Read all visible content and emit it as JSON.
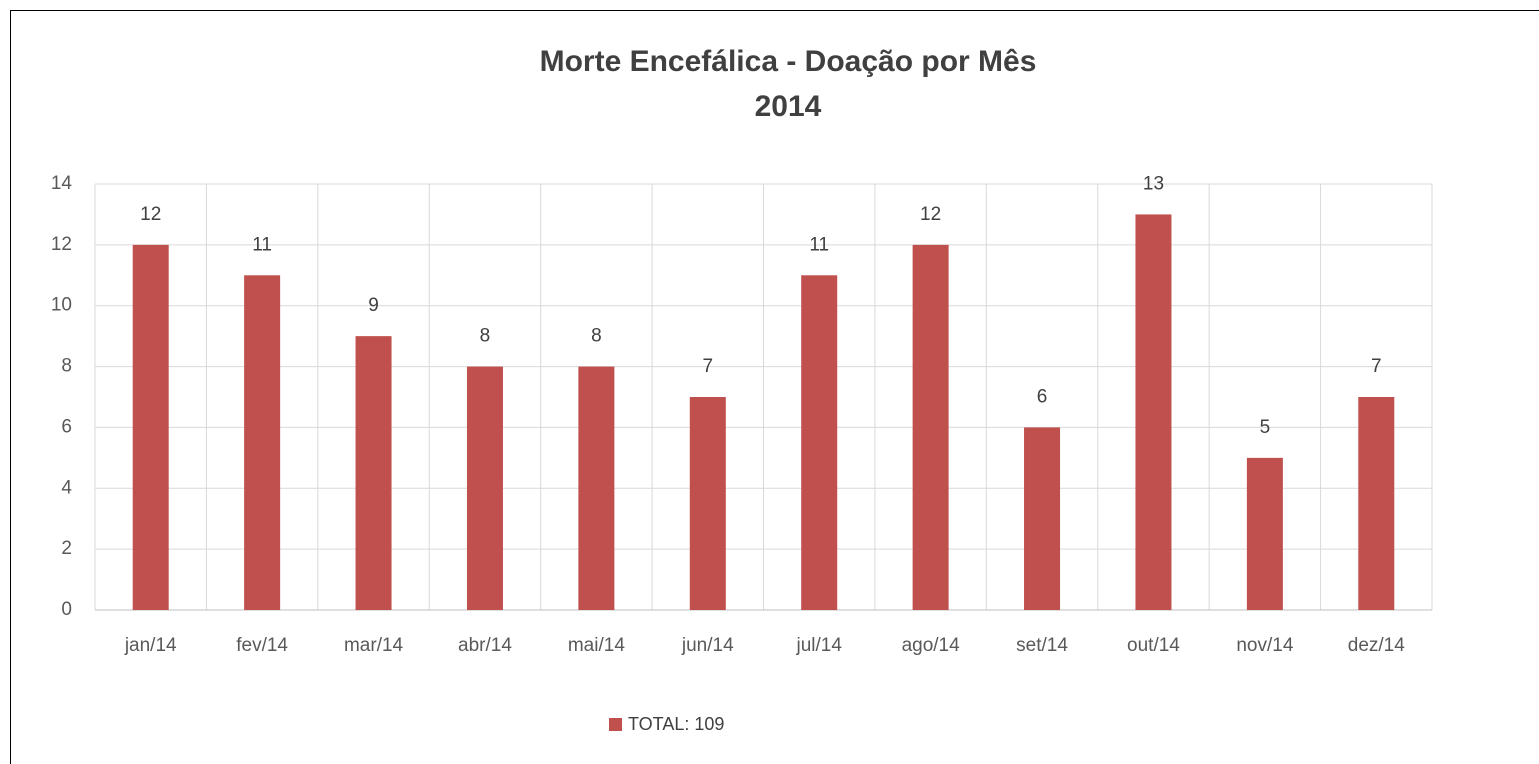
{
  "chart_data": {
    "type": "bar",
    "title": "Morte Encefálica - Doação por Mês",
    "subtitle": "2014",
    "categories": [
      "jan/14",
      "fev/14",
      "mar/14",
      "abr/14",
      "mai/14",
      "jun/14",
      "jul/14",
      "ago/14",
      "set/14",
      "out/14",
      "nov/14",
      "dez/14"
    ],
    "series": [
      {
        "name": "TOTAL: 109",
        "color": "#c0504d",
        "values": [
          12,
          11,
          9,
          8,
          8,
          7,
          11,
          12,
          6,
          13,
          5,
          7
        ]
      }
    ],
    "ylim": [
      0,
      14
    ],
    "yticks": [
      0,
      2,
      4,
      6,
      8,
      10,
      12,
      14
    ],
    "grid": true,
    "legend": "bottom"
  }
}
